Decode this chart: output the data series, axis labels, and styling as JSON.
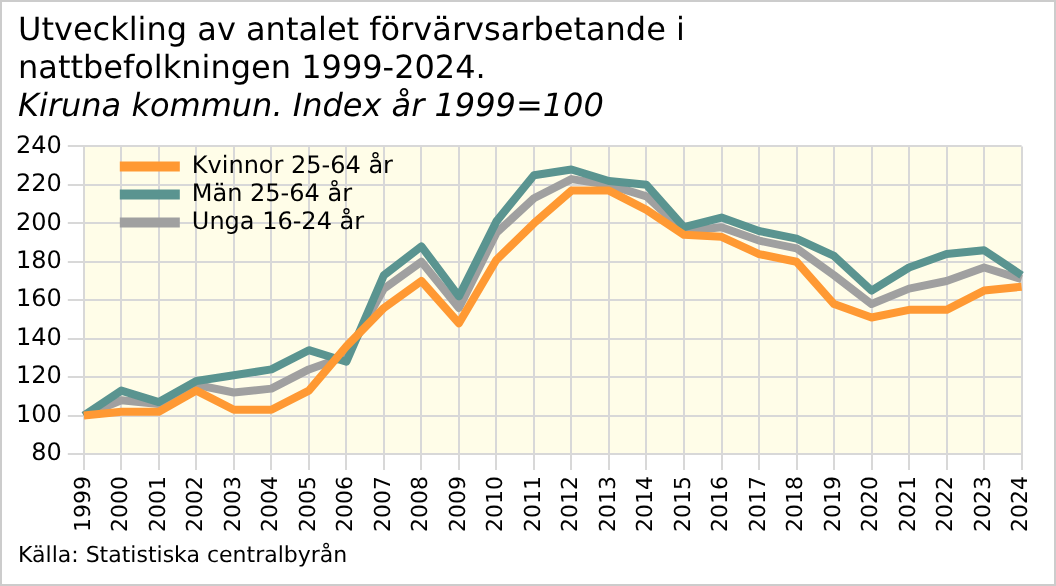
{
  "chart_data": {
    "type": "line",
    "title": "Utveckling av antalet förvärvsarbetande i nattbefolkningen 1999-2024.",
    "subtitle": "Kiruna kommun. Index år 1999=100",
    "categories": [
      "1999",
      "2000",
      "2001",
      "2002",
      "2003",
      "2004",
      "2005",
      "2006",
      "2007",
      "2008",
      "2009",
      "2010",
      "2011",
      "2012",
      "2013",
      "2014",
      "2015",
      "2016",
      "2017",
      "2018",
      "2019",
      "2020",
      "2021",
      "2022",
      "2023",
      "2024"
    ],
    "series": [
      {
        "name": "Kvinnor 25-64 år",
        "color": "#ff9933",
        "values": [
          100,
          102,
          102,
          113,
          103,
          103,
          113,
          136,
          156,
          170,
          148,
          181,
          200,
          217,
          217,
          207,
          194,
          193,
          184,
          180,
          158,
          151,
          155,
          155,
          165,
          167
        ]
      },
      {
        "name": "Män 25-64 år",
        "color": "#5a9490",
        "values": [
          100,
          113,
          107,
          118,
          121,
          124,
          134,
          128,
          173,
          188,
          162,
          201,
          225,
          228,
          222,
          220,
          198,
          203,
          196,
          192,
          183,
          165,
          177,
          184,
          186,
          173
        ]
      },
      {
        "name": "Unga 16-24 år",
        "color": "#a0a0a0",
        "values": [
          100,
          108,
          106,
          116,
          112,
          114,
          124,
          131,
          166,
          180,
          156,
          195,
          213,
          223,
          220,
          214,
          196,
          198,
          191,
          187,
          173,
          158,
          166,
          170,
          177,
          171
        ]
      }
    ],
    "ylim": [
      80,
      240
    ],
    "yticks": [
      80,
      100,
      120,
      140,
      160,
      180,
      200,
      220,
      240
    ],
    "grid": true,
    "legend": "top left",
    "marker": "none",
    "line_style": "solid",
    "annotations": [
      "Källa: Statistiska centralbyrån"
    ]
  }
}
